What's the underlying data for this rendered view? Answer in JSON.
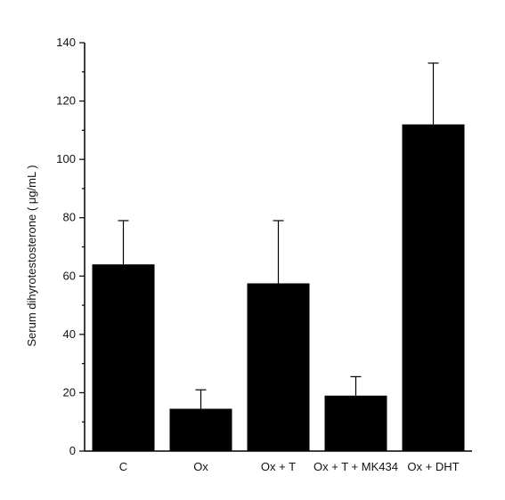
{
  "chart_data": {
    "type": "bar",
    "title": "",
    "xlabel": "",
    "ylabel": "Serum dihyrotestosterone ( μg/mL )",
    "categories": [
      "C",
      "Ox",
      "Ox + T",
      "Ox + T + MK434",
      "Ox + DHT"
    ],
    "values": [
      64,
      14.5,
      57.5,
      19,
      112
    ],
    "error_upper": [
      79,
      21,
      79,
      25.5,
      133
    ],
    "ylim": [
      0,
      140
    ],
    "yticks": [
      0,
      20,
      40,
      60,
      80,
      100,
      120,
      140
    ],
    "y_minor_step": 10,
    "grid": false,
    "legend": "none",
    "bar_color": "#000000"
  }
}
